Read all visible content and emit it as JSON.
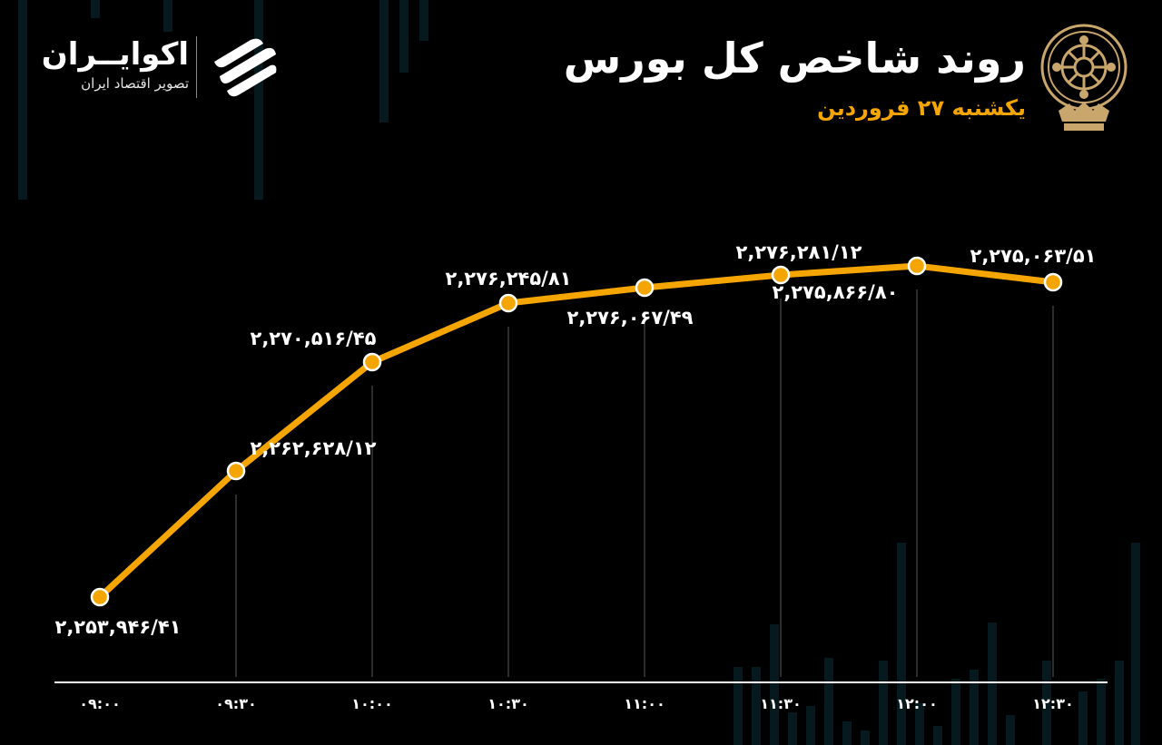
{
  "brand": {
    "name": "اکوایــران",
    "tagline": "تصویر اقتصاد ایران"
  },
  "header": {
    "title": "روند شاخص کل بورس",
    "subtitle": "یکشنبه ۲۷ فروردین"
  },
  "colors": {
    "background": "#000000",
    "line": "#f5a500",
    "accent_text": "#f5a500",
    "decor_bars": "#0a2e38"
  },
  "chart_data": {
    "type": "line",
    "title": "روند شاخص کل بورس",
    "subtitle": "یکشنبه ۲۷ فروردین",
    "xlabel": "",
    "ylabel": "",
    "categories": [
      "۰۹:۰۰",
      "۰۹:۳۰",
      "۱۰:۰۰",
      "۱۰:۳۰",
      "۱۱:۰۰",
      "۱۱:۳۰",
      "۱۲:۰۰",
      "۱۲:۳۰"
    ],
    "series": [
      {
        "values": [
          2253946.41,
          2262628.12,
          2270516.45,
          2276245.81,
          2276067.49,
          2276281.12,
          2275866.8,
          2275063.51
        ],
        "labels": [
          "۲,۲۵۳,۹۴۶/۴۱",
          "۲,۲۶۲,۶۲۸/۱۲",
          "۲,۲۷۰,۵۱۶/۴۵",
          "۲,۲۷۶,۲۴۵/۸۱",
          "۲,۲۷۶,۰۶۷/۴۹",
          "۲,۲۷۶,۲۸۱/۱۲",
          "۲,۲۷۵,۸۶۶/۸۰",
          "۲,۲۷۵,۰۶۳/۵۱"
        ]
      }
    ],
    "grid": "vertical drop lines",
    "legend": "none"
  }
}
